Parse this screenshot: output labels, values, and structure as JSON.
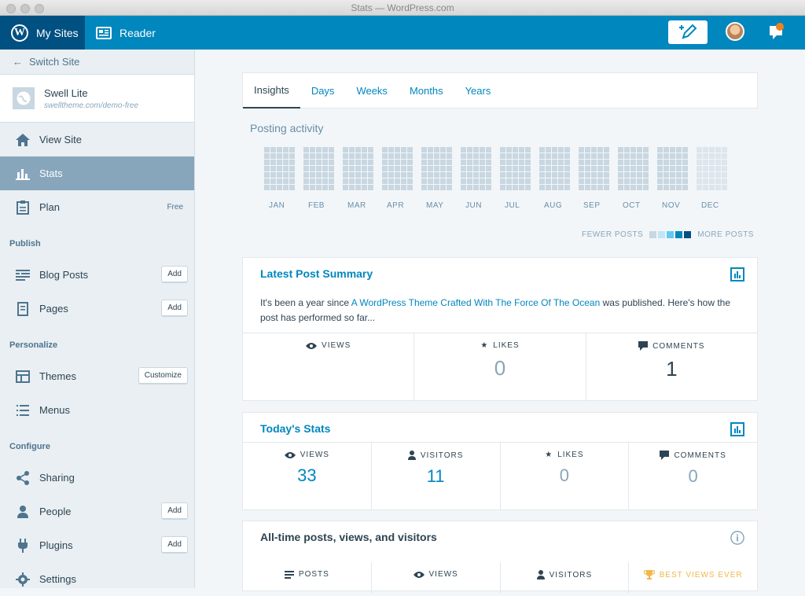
{
  "window": {
    "title": "Stats — WordPress.com"
  },
  "masterbar": {
    "my_sites": "My Sites",
    "reader": "Reader"
  },
  "sidebar": {
    "switch_site": "Switch Site",
    "site": {
      "name": "Swell Lite",
      "url": "swelltheme.com/demo-free"
    },
    "view_site": "View Site",
    "stats": "Stats",
    "plan": "Plan",
    "plan_tag": "Free",
    "publish_head": "Publish",
    "blog_posts": "Blog Posts",
    "pages": "Pages",
    "personalize_head": "Personalize",
    "themes": "Themes",
    "menus": "Menus",
    "configure_head": "Configure",
    "sharing": "Sharing",
    "people": "People",
    "plugins": "Plugins",
    "settings": "Settings",
    "add": "Add",
    "customize": "Customize"
  },
  "tabs": [
    "Insights",
    "Days",
    "Weeks",
    "Months",
    "Years"
  ],
  "posting_activity": {
    "title": "Posting activity",
    "months": [
      "JAN",
      "FEB",
      "MAR",
      "APR",
      "MAY",
      "JUN",
      "JUL",
      "AUG",
      "SEP",
      "OCT",
      "NOV",
      "DEC"
    ],
    "fewer": "FEWER POSTS",
    "more": "MORE POSTS",
    "colors": [
      "#c8d7e1",
      "#bfe6f7",
      "#64c9ef",
      "#0087be",
      "#005082"
    ]
  },
  "latest_post": {
    "title": "Latest Post Summary",
    "text_pre": "It's been a year since ",
    "link": "A WordPress Theme Crafted With The Force Of The Ocean",
    "text_post": " was published. Here's how the post has performed so far...",
    "views_label": "VIEWS",
    "likes_label": "LIKES",
    "likes_val": "0",
    "comments_label": "COMMENTS",
    "comments_val": "1"
  },
  "today": {
    "title": "Today's Stats",
    "views_label": "VIEWS",
    "views_val": "33",
    "visitors_label": "VISITORS",
    "visitors_val": "11",
    "likes_label": "LIKES",
    "likes_val": "0",
    "comments_label": "COMMENTS",
    "comments_val": "0"
  },
  "alltime": {
    "title": "All-time posts, views, and visitors",
    "posts_label": "POSTS",
    "views_label": "VIEWS",
    "visitors_label": "VISITORS",
    "best_label": "BEST VIEWS EVER"
  }
}
